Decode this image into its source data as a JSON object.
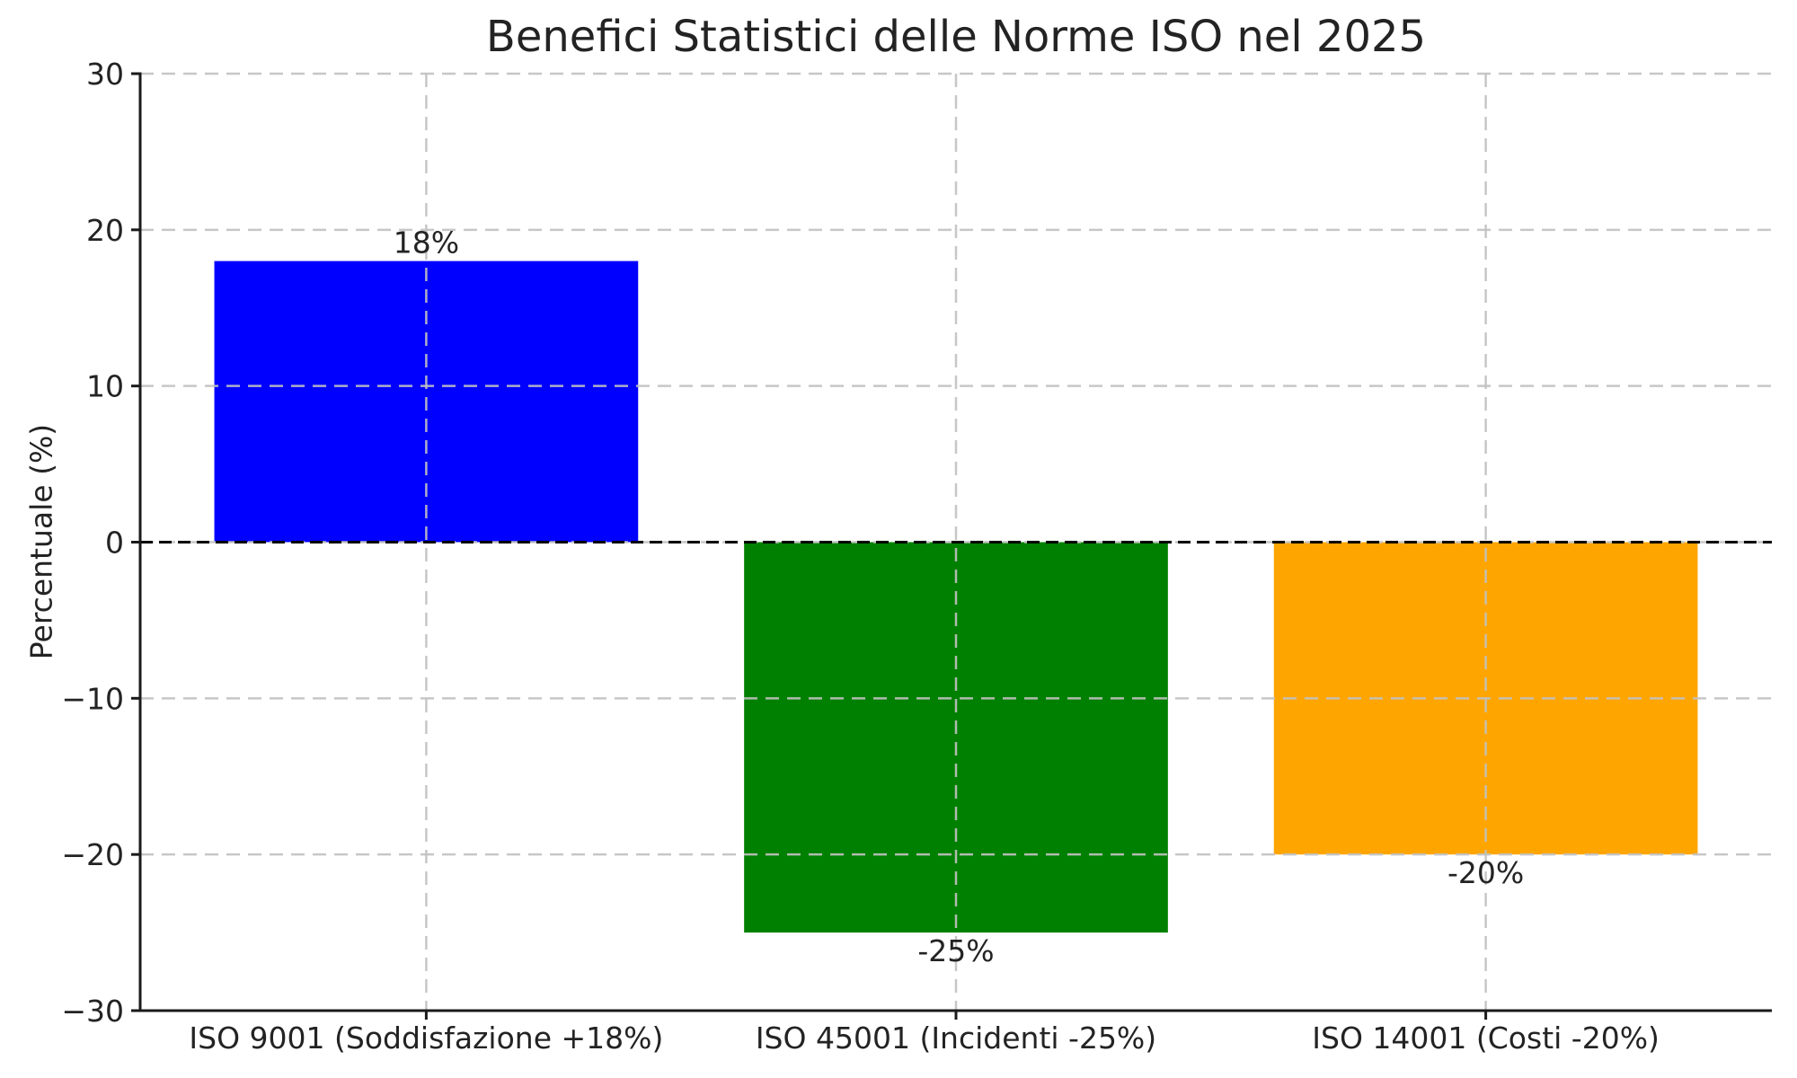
{
  "figure": {
    "background_color": "#ffffff",
    "text_color": "#232323",
    "axis_color": "#1a1a1a",
    "grid_color": "#c2c2c2",
    "zero_line_color": "#000000"
  },
  "chart_data": {
    "type": "bar",
    "title": "Benefici Statistici delle Norme ISO nel 2025",
    "xlabel": "",
    "ylabel": "Percentuale (%)",
    "categories": [
      "ISO 9001 (Soddisfazione +18%)",
      "ISO 45001 (Incidenti -25%)",
      "ISO 14001 (Costi -20%)"
    ],
    "values": [
      18,
      -25,
      -20
    ],
    "bar_labels": [
      "18%",
      "-25%",
      "-20%"
    ],
    "bar_colors": [
      "#0000ff",
      "#008000",
      "#ffa500"
    ],
    "ylim": [
      -30,
      30
    ],
    "yticks": [
      30,
      20,
      10,
      0,
      -10,
      -20,
      -30
    ],
    "ytick_labels": [
      "30",
      "20",
      "10",
      "0",
      "−10",
      "−20",
      "−30"
    ],
    "grid": {
      "visible": true,
      "style": "dashed",
      "on_top_of_bars": true
    },
    "zero_line": {
      "visible": true,
      "style": "dashed",
      "y": 0
    },
    "legend": null
  }
}
